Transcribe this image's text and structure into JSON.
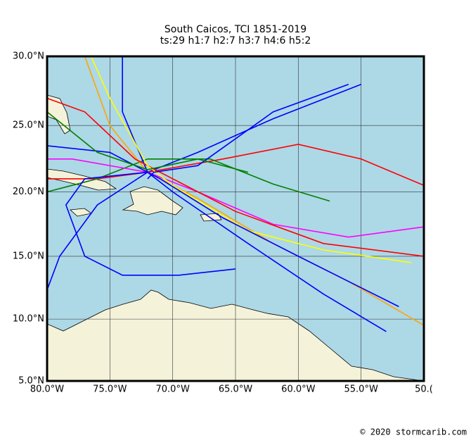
{
  "chart_data": {
    "type": "track-map",
    "title": "South Caicos, TCI 1851-2019",
    "subtitle": "ts:29  h1:7  h2:7  h3:7  h4:6  h5:2",
    "xlim": [
      -80,
      -50
    ],
    "ylim": [
      5,
      30
    ],
    "xticks": [
      {
        "value": -80,
        "label": "80.0°W"
      },
      {
        "value": -75,
        "label": "75.0°W"
      },
      {
        "value": -70,
        "label": "70.0°W"
      },
      {
        "value": -65,
        "label": "65.0°W"
      },
      {
        "value": -60,
        "label": "60.0°W"
      },
      {
        "value": -55,
        "label": "55.0°W"
      },
      {
        "value": -50,
        "label": "50.("
      }
    ],
    "yticks": [
      {
        "value": 5,
        "label": "5.0°N"
      },
      {
        "value": 10,
        "label": "10.0°N"
      },
      {
        "value": 15,
        "label": "15.0°N"
      },
      {
        "value": 20,
        "label": "20.0°N"
      },
      {
        "value": 25,
        "label": "25.0°N"
      },
      {
        "value": 30,
        "label": "30.0°N"
      }
    ],
    "grid": true,
    "tracks": [
      {
        "color": "#0000ff",
        "lon": [
          -55,
          -62,
          -68,
          -72,
          -76,
          -79,
          -80.5
        ],
        "lat": [
          28,
          25.5,
          23,
          21.5,
          19,
          15,
          11
        ]
      },
      {
        "color": "#ff0000",
        "lon": [
          -50,
          -55,
          -60,
          -66,
          -72,
          -76,
          -80
        ],
        "lat": [
          20.5,
          22.5,
          23.6,
          22.5,
          21.5,
          21,
          21
        ]
      },
      {
        "color": "#008000",
        "lon": [
          -57.5,
          -62,
          -67,
          -72,
          -76,
          -80
        ],
        "lat": [
          19.3,
          20.6,
          22.5,
          22.5,
          21,
          20
        ]
      },
      {
        "color": "#ffa500",
        "lon": [
          -50,
          -56,
          -62,
          -68,
          -72,
          -75,
          -77
        ],
        "lat": [
          9.5,
          13,
          16,
          19.5,
          21.5,
          25,
          30
        ]
      },
      {
        "color": "#ff00ff",
        "lon": [
          -50,
          -56,
          -62,
          -68,
          -72,
          -78,
          -80
        ],
        "lat": [
          17.3,
          16.5,
          17.5,
          20,
          21.5,
          22.5,
          22.5
        ]
      },
      {
        "color": "#0000ff",
        "lon": [
          -53,
          -58,
          -64,
          -70,
          -72,
          -74,
          -74
        ],
        "lat": [
          9,
          12,
          16,
          20,
          21.5,
          26,
          30
        ]
      },
      {
        "color": "#ff0000",
        "lon": [
          -50,
          -58,
          -65,
          -70,
          -73,
          -77,
          -80
        ],
        "lat": [
          15,
          16,
          18.5,
          21,
          22.5,
          26,
          27
        ]
      },
      {
        "color": "#ffff00",
        "lon": [
          -51,
          -58,
          -64,
          -70,
          -72,
          -75,
          -76.5
        ],
        "lat": [
          14.5,
          15.5,
          17,
          20.5,
          22,
          27,
          30
        ]
      },
      {
        "color": "#0000ff",
        "lon": [
          -52,
          -60,
          -66,
          -71,
          -75,
          -80
        ],
        "lat": [
          11,
          15,
          18,
          21,
          23,
          23.5
        ]
      },
      {
        "color": "#0000ff",
        "lon": [
          -65,
          -69.5,
          -74,
          -77,
          -78.5,
          -77,
          -72
        ],
        "lat": [
          14,
          13.5,
          13.5,
          15,
          19,
          21,
          21.5
        ]
      },
      {
        "color": "#0000ff",
        "lon": [
          -56,
          -62,
          -68,
          -71.5,
          -72
        ],
        "lat": [
          28,
          26,
          22,
          21.5,
          21
        ]
      },
      {
        "color": "#008000",
        "lon": [
          -64,
          -68,
          -72,
          -76,
          -80
        ],
        "lat": [
          21.5,
          22.5,
          21.7,
          23,
          26
        ]
      }
    ]
  },
  "credit": "© 2020 stormcarib.com"
}
